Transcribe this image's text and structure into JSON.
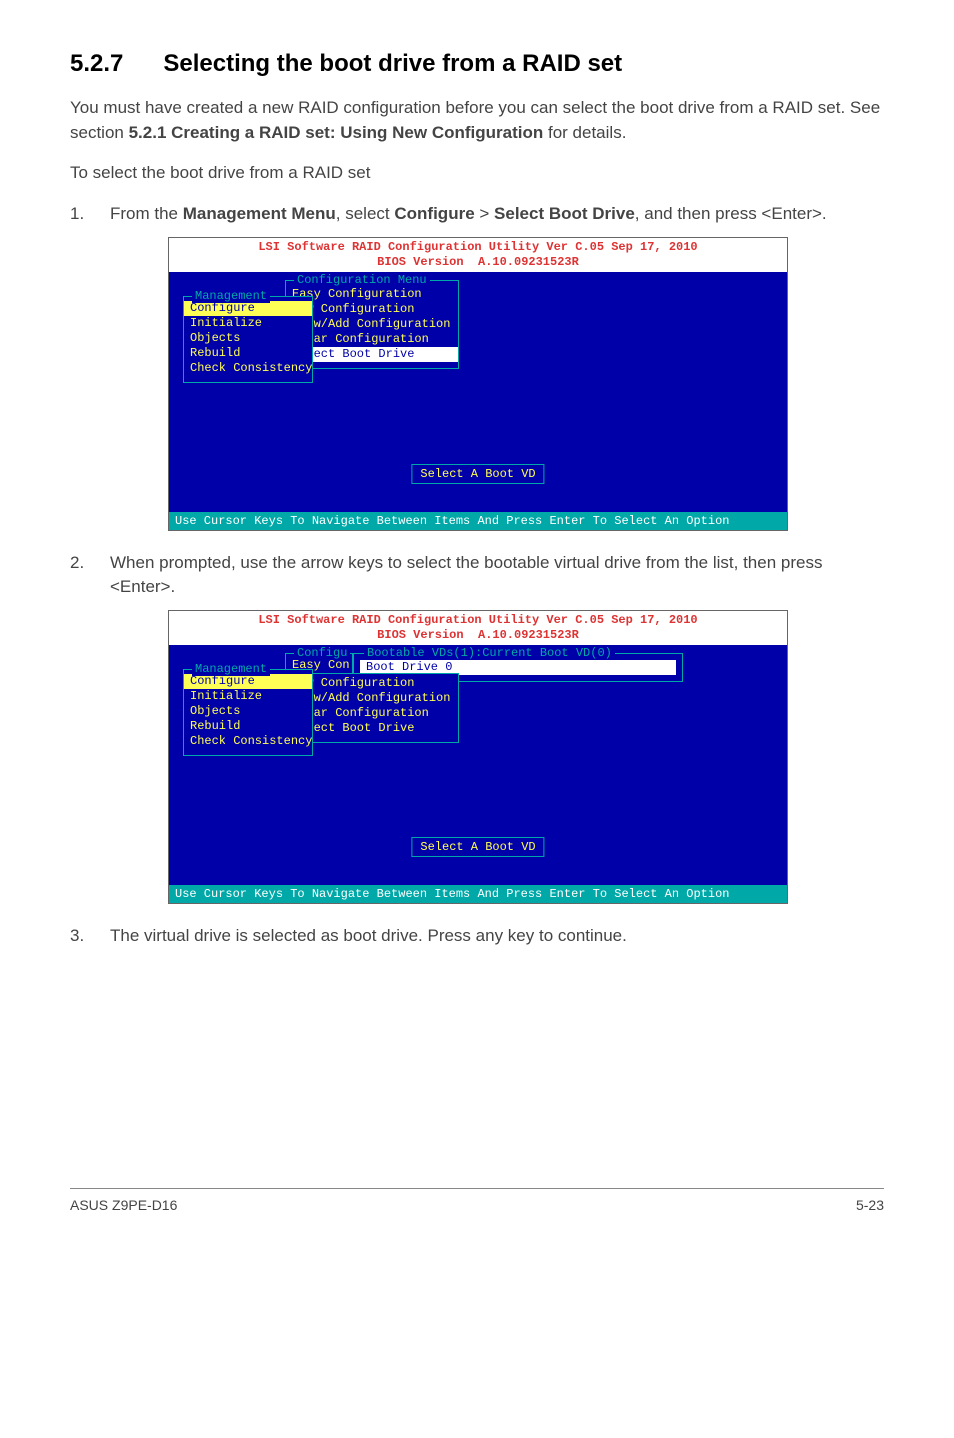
{
  "section": {
    "number": "5.2.7",
    "title": "Selecting the boot drive from a RAID set"
  },
  "intro": {
    "p1a": "You must have created a new RAID configuration before you can select the boot drive from a RAID set. See section ",
    "p1b": "5.2.1 Creating a RAID set: Using New Configuration",
    "p1c": " for details.",
    "p2": "To select the boot drive from a RAID set"
  },
  "steps": {
    "s1": {
      "num": "1.",
      "a": "From the ",
      "b": "Management Menu",
      "c": ", select ",
      "d": "Configure",
      "e": " > ",
      "f": "Select Boot Drive",
      "g": ", and then press <Enter>."
    },
    "s2": {
      "num": "2.",
      "text": "When prompted, use the arrow keys to select the bootable virtual drive from the list, then press <Enter>."
    },
    "s3": {
      "num": "3.",
      "text": "The virtual drive is selected as boot drive. Press any key to continue."
    }
  },
  "bios": {
    "title_l1": "LSI Software RAID Configuration Utility Ver C.05 Sep 17, 2010",
    "title_l2": "BIOS Version  A.10.09231523R",
    "mgmt_legend": "Management",
    "mgmt_items": {
      "i0": "Configure",
      "i1": "Initialize",
      "i2": "Objects",
      "i3": "Rebuild",
      "i4": "Check Consistency"
    },
    "cfg_legend": "Configuration Menu",
    "cfg_items": {
      "i0": "Easy Configuration",
      "i1": "New Configuration",
      "i2": "View/Add Configuration",
      "i3": "Clear Configuration",
      "i4": "Select Boot Drive"
    },
    "hint": "Select A Boot VD",
    "footer": "Use Cursor Keys To Navigate Between Items And Press Enter To Select An Option",
    "easycon_legend": "Configu",
    "easycon_item": "Easy Con",
    "boot_legend": "Bootable VDs(1):Current Boot VD(0)",
    "boot_item": "Boot Drive 0"
  },
  "pagefooter": {
    "left": "ASUS Z9PE-D16",
    "right": "5-23"
  }
}
